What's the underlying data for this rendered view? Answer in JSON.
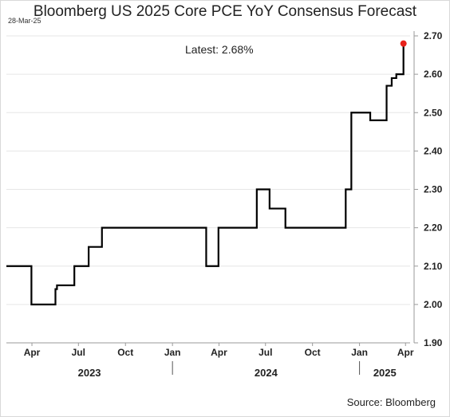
{
  "header": {
    "title": "Bloomberg US 2025 Core PCE YoY Consensus Forecast",
    "date": "28-Mar-25"
  },
  "footer": {
    "source": "Source: Bloomberg"
  },
  "colors": {
    "line": "#000000",
    "marker": "#e8221b",
    "grid": "#e6e6e6",
    "axis": "#9a9a9a"
  },
  "chart_data": {
    "type": "line",
    "title": "Bloomberg US 2025 Core PCE YoY Consensus Forecast",
    "xlabel": "",
    "ylabel": "",
    "ylim": [
      1.9,
      2.7
    ],
    "yticks": [
      "1.90",
      "2.00",
      "2.10",
      "2.20",
      "2.30",
      "2.40",
      "2.50",
      "2.60",
      "2.70"
    ],
    "xlim": [
      "2023-02-10",
      "2025-04-10"
    ],
    "xticks": [
      {
        "date": "2023-04-01",
        "label": "Apr"
      },
      {
        "date": "2023-07-01",
        "label": "Jul"
      },
      {
        "date": "2023-10-01",
        "label": "Oct"
      },
      {
        "date": "2024-01-01",
        "label": "Jan"
      },
      {
        "date": "2024-04-01",
        "label": "Apr"
      },
      {
        "date": "2024-07-01",
        "label": "Jul"
      },
      {
        "date": "2024-10-01",
        "label": "Oct"
      },
      {
        "date": "2025-01-01",
        "label": "Jan"
      },
      {
        "date": "2025-04-01",
        "label": "Apr"
      }
    ],
    "year_labels": [
      {
        "label": "2023",
        "start": "2023-02-10",
        "end": "2024-01-01"
      },
      {
        "label": "2024",
        "start": "2024-01-01",
        "end": "2025-01-01"
      },
      {
        "label": "2025",
        "start": "2025-01-01",
        "end": "2025-04-10"
      }
    ],
    "grid": "horizontal",
    "step": true,
    "series": [
      {
        "x": [
          "2023-02-10",
          "2023-03-31",
          "2023-05-17",
          "2023-05-20",
          "2023-06-01",
          "2023-06-23",
          "2023-07-21",
          "2023-08-16",
          "2024-03-07",
          "2024-03-31",
          "2024-06-14",
          "2024-07-09",
          "2024-08-09",
          "2024-12-05",
          "2024-12-16",
          "2025-01-22",
          "2025-02-23",
          "2025-03-05",
          "2025-03-14",
          "2025-03-28"
        ],
        "values": [
          2.1,
          2.0,
          2.04,
          2.05,
          2.05,
          2.1,
          2.15,
          2.2,
          2.1,
          2.2,
          2.3,
          2.25,
          2.2,
          2.3,
          2.5,
          2.48,
          2.57,
          2.59,
          2.6,
          2.68
        ]
      }
    ],
    "latest": {
      "date": "2025-03-28",
      "value": 2.68
    },
    "annotation": "Latest:  2.68%"
  }
}
